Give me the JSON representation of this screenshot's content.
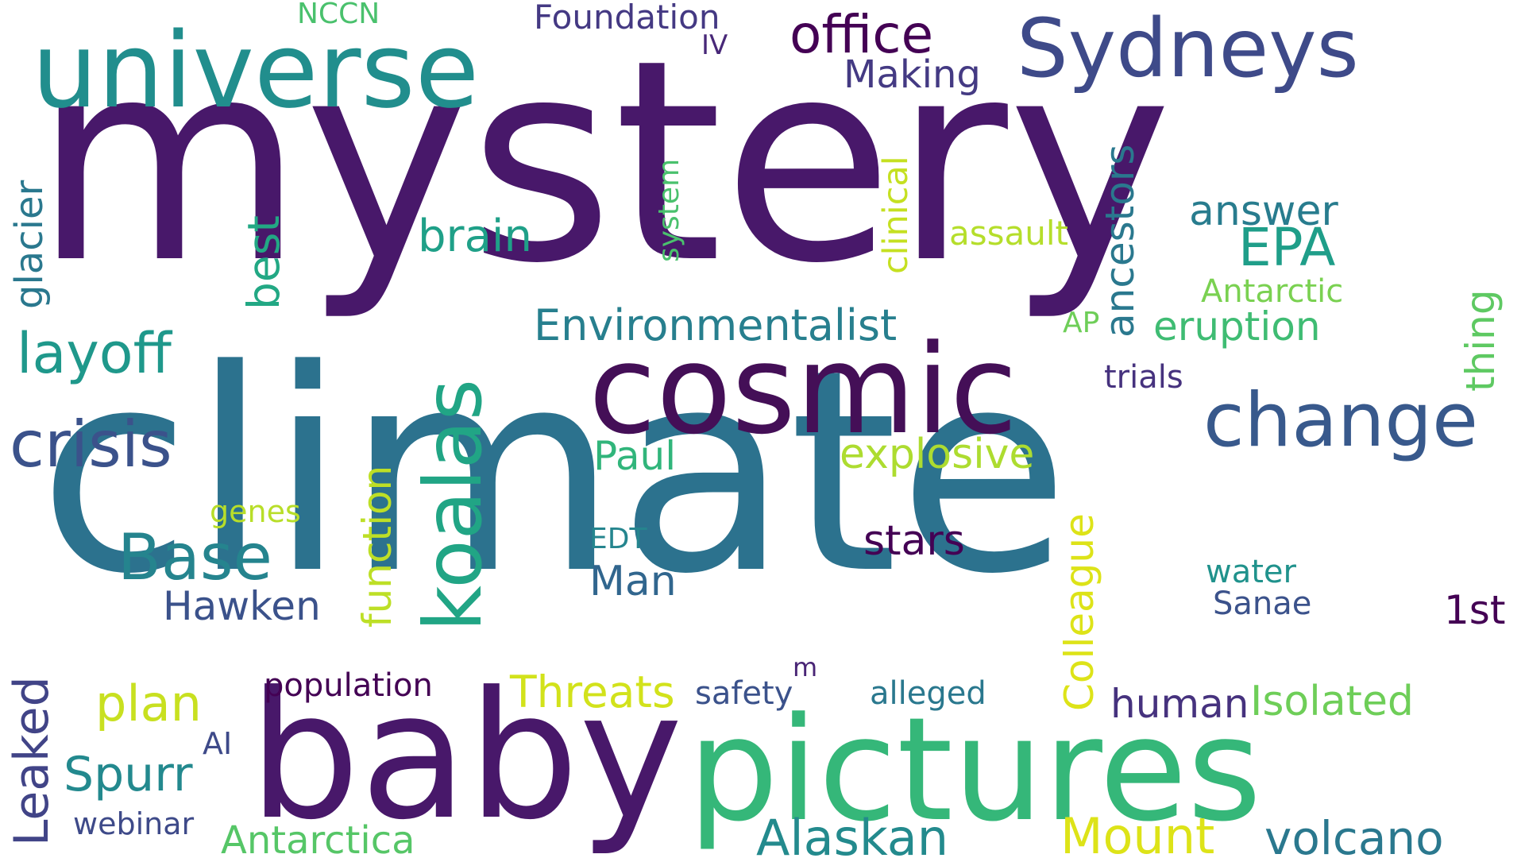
{
  "title": "Word cloud",
  "words": [
    {
      "text": "mystery",
      "color": "#48186a",
      "vertical": false
    },
    {
      "text": "climate",
      "color": "#2c728e",
      "vertical": false
    },
    {
      "text": "baby",
      "color": "#48186a",
      "vertical": false
    },
    {
      "text": "pictures",
      "color": "#35b779",
      "vertical": false
    },
    {
      "text": "cosmic",
      "color": "#440f57",
      "vertical": false
    },
    {
      "text": "universe",
      "color": "#218e8d",
      "vertical": false
    },
    {
      "text": "Sydneys",
      "color": "#3e4a89",
      "vertical": false
    },
    {
      "text": "koalas",
      "color": "#21a585",
      "vertical": true
    },
    {
      "text": "change",
      "color": "#38598c",
      "vertical": false
    },
    {
      "text": "crisis",
      "color": "#3b528b",
      "vertical": false
    },
    {
      "text": "Base",
      "color": "#25848e",
      "vertical": false
    },
    {
      "text": "layoff",
      "color": "#1f988b",
      "vertical": false
    },
    {
      "text": "office",
      "color": "#440154",
      "vertical": false
    },
    {
      "text": "Making",
      "color": "#443a83",
      "vertical": false
    },
    {
      "text": "Foundation",
      "color": "#443983",
      "vertical": false
    },
    {
      "text": "IV",
      "color": "#482878",
      "vertical": false
    },
    {
      "text": "NCCN",
      "color": "#4ac16d",
      "vertical": false
    },
    {
      "text": "glacier",
      "color": "#2a788e",
      "vertical": true
    },
    {
      "text": "best",
      "color": "#22a884",
      "vertical": true
    },
    {
      "text": "brain",
      "color": "#1fa088",
      "vertical": false
    },
    {
      "text": "system",
      "color": "#4ac16d",
      "vertical": true
    },
    {
      "text": "clinical",
      "color": "#c5e021",
      "vertical": true
    },
    {
      "text": "assault",
      "color": "#b5de2b",
      "vertical": false
    },
    {
      "text": "ancestors",
      "color": "#2a788e",
      "vertical": true
    },
    {
      "text": "answer",
      "color": "#287c8e",
      "vertical": false
    },
    {
      "text": "EPA",
      "color": "#1f9e89",
      "vertical": false
    },
    {
      "text": "Antarctic",
      "color": "#7ad151",
      "vertical": false
    },
    {
      "text": "AP",
      "color": "#6ece58",
      "vertical": false
    },
    {
      "text": "Environmentalist",
      "color": "#277f8e",
      "vertical": false
    },
    {
      "text": "eruption",
      "color": "#3fbc73",
      "vertical": false
    },
    {
      "text": "thing",
      "color": "#5ec962",
      "vertical": true
    },
    {
      "text": "trials",
      "color": "#46327e",
      "vertical": false
    },
    {
      "text": "Paul",
      "color": "#31b57b",
      "vertical": false
    },
    {
      "text": "explosive",
      "color": "#addc30",
      "vertical": false
    },
    {
      "text": "function",
      "color": "#bddf26",
      "vertical": true
    },
    {
      "text": "genes",
      "color": "#b8de29",
      "vertical": false
    },
    {
      "text": "EDT",
      "color": "#25858e",
      "vertical": false
    },
    {
      "text": "stars",
      "color": "#440154",
      "vertical": false
    },
    {
      "text": "Colleague",
      "color": "#dde318",
      "vertical": true
    },
    {
      "text": "Man",
      "color": "#31668e",
      "vertical": false
    },
    {
      "text": "Hawken",
      "color": "#3b528b",
      "vertical": false
    },
    {
      "text": "water",
      "color": "#20928c",
      "vertical": false
    },
    {
      "text": "Sanae",
      "color": "#3b528b",
      "vertical": false
    },
    {
      "text": "1st",
      "color": "#440154",
      "vertical": false
    },
    {
      "text": "Leaked",
      "color": "#414487",
      "vertical": true
    },
    {
      "text": "plan",
      "color": "#c8e020",
      "vertical": false
    },
    {
      "text": "population",
      "color": "#440154",
      "vertical": false
    },
    {
      "text": "Threats",
      "color": "#d2e21b",
      "vertical": false
    },
    {
      "text": "safety",
      "color": "#3b528b",
      "vertical": false
    },
    {
      "text": "m",
      "color": "#482475",
      "vertical": false
    },
    {
      "text": "alleged",
      "color": "#2a788e",
      "vertical": false
    },
    {
      "text": "human",
      "color": "#46327e",
      "vertical": false
    },
    {
      "text": "Isolated",
      "color": "#6ece58",
      "vertical": false
    },
    {
      "text": "AI",
      "color": "#3e4a89",
      "vertical": false
    },
    {
      "text": "Spurr",
      "color": "#23898e",
      "vertical": false
    },
    {
      "text": "webinar",
      "color": "#3e4a89",
      "vertical": false
    },
    {
      "text": "Antarctica",
      "color": "#56c667",
      "vertical": false
    },
    {
      "text": "Alaskan",
      "color": "#238a8d",
      "vertical": false
    },
    {
      "text": "Mount",
      "color": "#dde318",
      "vertical": false
    },
    {
      "text": "volcano",
      "color": "#2a788e",
      "vertical": false
    }
  ]
}
